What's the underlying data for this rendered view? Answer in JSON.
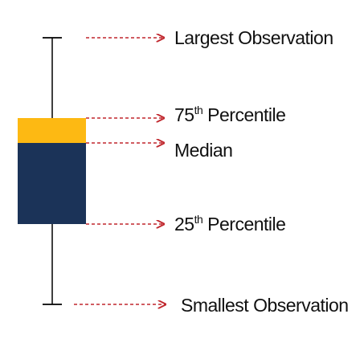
{
  "colors": {
    "box_upper": "#FDB913",
    "box_lower": "#1B3358",
    "arrow": "#C0272D",
    "whisker": "#000000"
  },
  "labels": {
    "largest": "Largest Observation",
    "q3_num": "75",
    "q3_sup": "th",
    "q3_text": " Percentile",
    "median": "Median",
    "q1_num": "25",
    "q1_sup": "th",
    "q1_text": " Percentile",
    "smallest": "Smallest Observation"
  }
}
